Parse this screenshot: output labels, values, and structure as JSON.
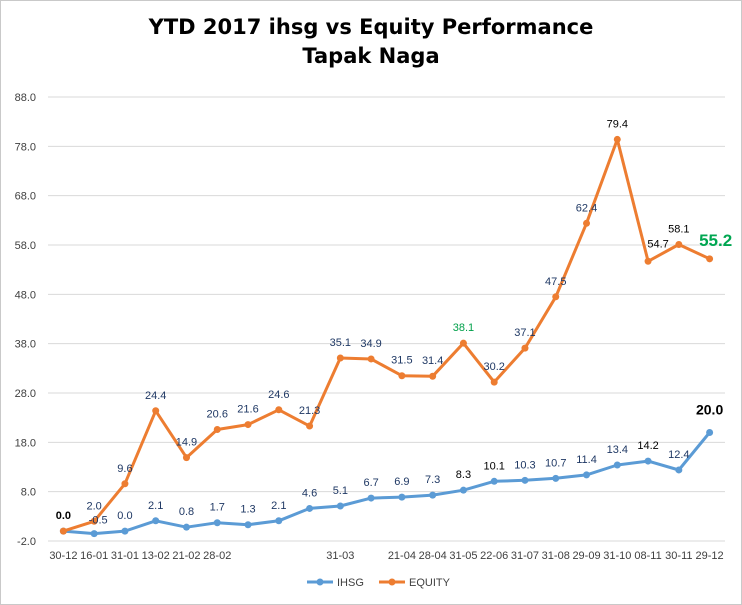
{
  "chart_data": {
    "type": "line",
    "title": [
      "YTD 2017 ihsg vs Equity Performance",
      "Tapak Naga"
    ],
    "x_categories": [
      "30-12",
      "16-01",
      "31-01",
      "13-02",
      "21-02",
      "28-02",
      "",
      "",
      "",
      "31-03",
      "",
      "21-04",
      "28-04",
      "31-05",
      "22-06",
      "31-07",
      "31-08",
      "29-09",
      "31-10",
      "08-11",
      "30-11",
      "29-12"
    ],
    "y_ticks": [
      "88.0",
      "78.0",
      "68.0",
      "58.0",
      "48.0",
      "38.0",
      "28.0",
      "18.0",
      "8.0",
      "-2.0"
    ],
    "ylim": [
      -2.0,
      88.0
    ],
    "grid": true,
    "legend_position": "bottom",
    "series": [
      {
        "name": "IHSG",
        "color": "#5b9bd5",
        "values": [
          0.0,
          -0.5,
          0.0,
          2.1,
          0.8,
          1.7,
          1.3,
          2.1,
          4.6,
          5.1,
          6.7,
          6.9,
          7.3,
          8.3,
          10.1,
          10.3,
          10.7,
          11.4,
          13.4,
          14.2,
          12.4,
          20.0
        ],
        "labels": [
          "0.0",
          "-0.5",
          "0.0",
          "2.1",
          "0.8",
          "1.7",
          "1.3",
          "2.1",
          "4.6",
          "5.1",
          "6.7",
          "6.9",
          "7.3",
          "8.3",
          "10.1",
          "10.3",
          "10.7",
          "11.4",
          "13.4",
          "14.2",
          "12.4",
          "20.0"
        ]
      },
      {
        "name": "EQUITY",
        "color": "#ed7d31",
        "values": [
          0.0,
          2.0,
          9.6,
          24.4,
          14.9,
          20.6,
          21.6,
          24.6,
          21.3,
          35.1,
          34.9,
          31.5,
          31.4,
          38.1,
          30.2,
          37.1,
          47.5,
          62.4,
          79.4,
          54.7,
          58.1,
          55.2
        ],
        "labels": [
          "0.0",
          "2.0",
          "9.6",
          "24.4",
          "14.9",
          "20.6",
          "21.6",
          "24.6",
          "21.3",
          "35.1",
          "34.9",
          "31.5",
          "31.4",
          "38.1",
          "30.2",
          "37.1",
          "47.5",
          "62.4",
          "79.4",
          "54.7",
          "58.1",
          "55.2"
        ]
      }
    ]
  },
  "colors": {
    "label_navy": "#1f3864",
    "label_green": "#00a04a",
    "label_black": "#000000",
    "highlight_green": "#00a651"
  }
}
